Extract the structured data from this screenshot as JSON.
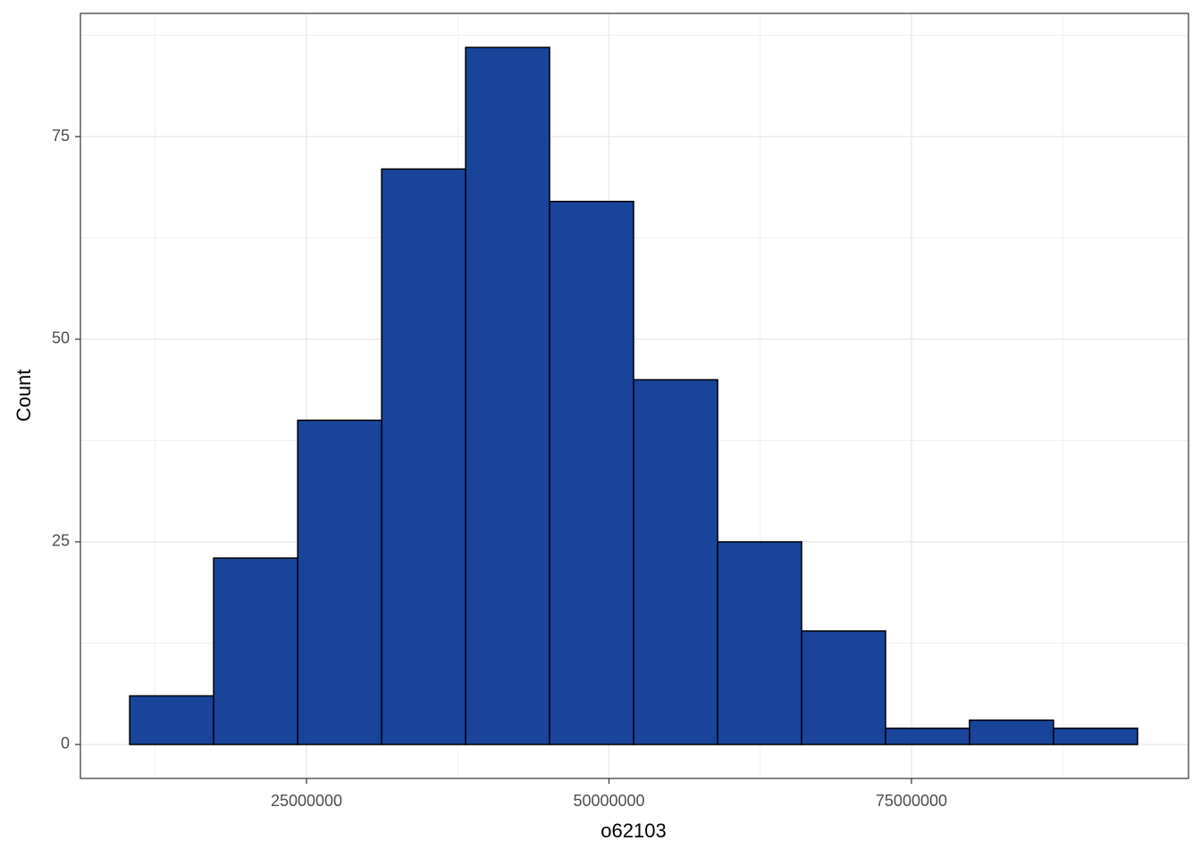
{
  "chart_data": {
    "type": "histogram",
    "x_label": "o62103",
    "y_label": "Count",
    "bins": [
      10380000,
      17320000,
      24270000,
      31210000,
      38150000,
      45090000,
      52030000,
      58980000,
      65920000,
      72860000,
      79800000,
      86740000,
      93690000
    ],
    "values": [
      6,
      23,
      40,
      71,
      86,
      67,
      45,
      25,
      14,
      2,
      3,
      2
    ],
    "color": "#18449a",
    "edgecolor": "#000000",
    "xlim": [
      6310000,
      97900000
    ],
    "xticks": [
      25000000,
      50000000,
      75000000
    ],
    "ylim": [
      -4.19,
      90.2
    ],
    "yticks": [
      0,
      25,
      50,
      75
    ],
    "grid": true
  }
}
